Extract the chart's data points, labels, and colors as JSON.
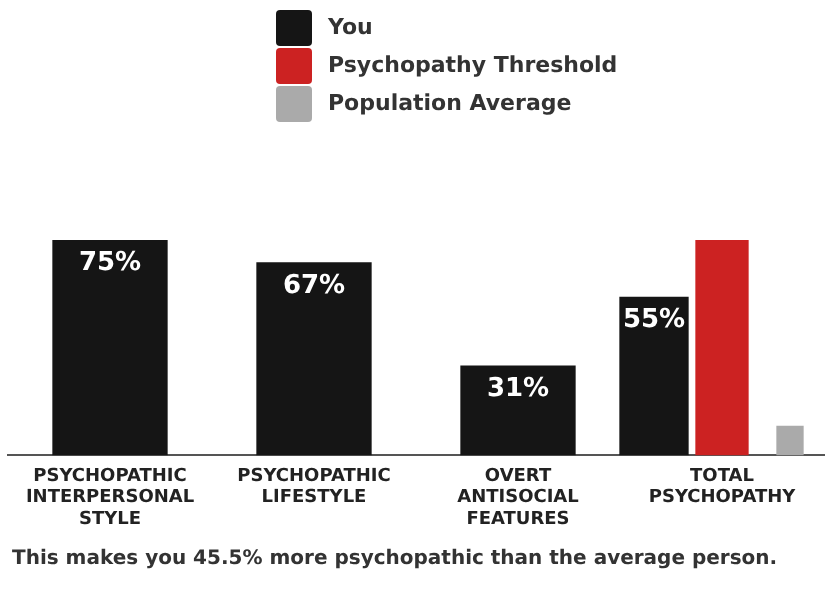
{
  "chart_data": {
    "type": "bar",
    "categories": [
      "PSYCHOPATHIC INTERPERSONAL STYLE",
      "PSYCHOPATHIC LIFESTYLE",
      "OVERT ANTISOCIAL FEATURES",
      "TOTAL PSYCHOPATHY"
    ],
    "series": [
      {
        "name": "You",
        "color": "#151515",
        "values": [
          75,
          67,
          31,
          55
        ],
        "value_labels": [
          "75%",
          "67%",
          "31%",
          "55%"
        ]
      },
      {
        "name": "Psychopathy Threshold",
        "color": "#cc2222",
        "values": [
          null,
          null,
          null,
          75
        ]
      },
      {
        "name": "Population Average",
        "color": "#aaaaaa",
        "values": [
          null,
          null,
          null,
          10
        ]
      }
    ],
    "tick_labels": "x",
    "legend": "top",
    "annotations": [
      "This makes you 45.5% more psychopathic than the average person."
    ]
  }
}
